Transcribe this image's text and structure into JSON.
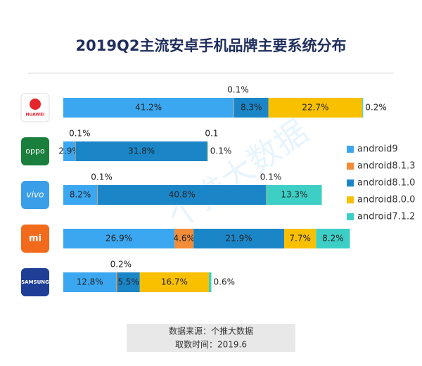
{
  "chart_data": {
    "type": "stacked-bar-horizontal",
    "title": "2019Q2主流安卓手机品牌主要系统分布",
    "categories": [
      "HUAWEI",
      "oppo",
      "vivo",
      "mi",
      "SAMSUNG"
    ],
    "series": [
      {
        "name": "android9",
        "color": "#3ba7f0",
        "values": [
          41.2,
          2.9,
          8.2,
          26.9,
          12.8
        ],
        "value_labels": [
          "41.2%",
          "2.9%",
          "8.2%",
          "26.9%",
          "12.8%"
        ]
      },
      {
        "name": "android8.1.3",
        "color": "#f28c38",
        "values": [
          0.1,
          0.1,
          0.1,
          4.6,
          0.2
        ],
        "value_labels": [
          "0.1%",
          "0.1%",
          "0.1%",
          "4.6%",
          "0.2%"
        ]
      },
      {
        "name": "android8.1.0",
        "color": "#1a86c8",
        "values": [
          8.3,
          31.8,
          40.8,
          21.9,
          5.5
        ],
        "value_labels": [
          "8.3%",
          "31.8%",
          "40.8%",
          "21.9%",
          "5.5%"
        ]
      },
      {
        "name": "android8.0.0",
        "color": "#f9c000",
        "values": [
          22.7,
          0.1,
          0.1,
          7.7,
          16.7
        ],
        "value_labels": [
          "22.7%",
          "0.1",
          "0.1%",
          "7.7%",
          "16.7%"
        ]
      },
      {
        "name": "android7.1.2",
        "color": "#3dcfc6",
        "values": [
          0.2,
          0.1,
          13.3,
          8.2,
          0.6
        ],
        "value_labels": [
          "0.2%",
          "0.1%",
          "13.3%",
          "8.2%",
          "0.6%"
        ]
      }
    ],
    "source": "数据来源：个推大数据",
    "date": "取数时间：2019.6",
    "watermark": "个推大数据"
  }
}
